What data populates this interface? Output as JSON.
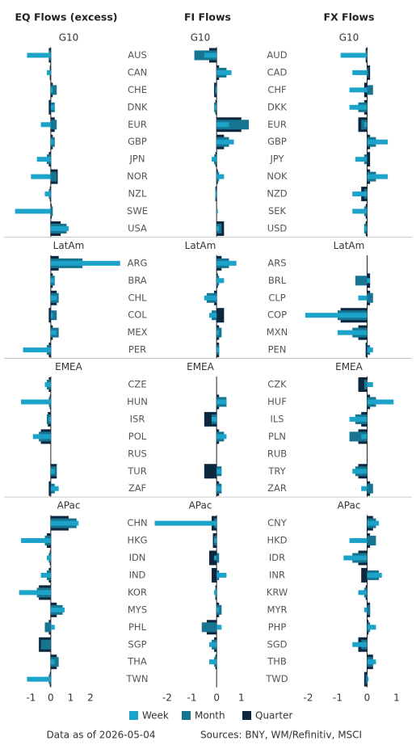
{
  "chart_data": [
    {
      "type": "bar",
      "orientation": "horizontal",
      "title": "EQ Flows (excess)",
      "groups": [
        {
          "name": "G10",
          "categories": [
            "AUS",
            "CAN",
            "CHE",
            "DNK",
            "EUR",
            "GBP",
            "JPN",
            "NOR",
            "NZL",
            "SWE",
            "USA"
          ]
        },
        {
          "name": "LatAm",
          "categories": [
            "ARG",
            "BRA",
            "CHL",
            "COL",
            "MEX",
            "PER"
          ]
        },
        {
          "name": "EMEA",
          "categories": [
            "CZE",
            "HUN",
            "ISR",
            "POL",
            "RUS",
            "TUR",
            "ZAF"
          ]
        },
        {
          "name": "APac",
          "categories": [
            "CHN",
            "HKG",
            "IDN",
            "IND",
            "KOR",
            "MYS",
            "PHL",
            "SGP",
            "THA",
            "TWN"
          ]
        }
      ],
      "series": [
        {
          "values": [
            -1.2,
            -0.2,
            0.1,
            0.2,
            -0.5,
            0.15,
            -0.7,
            -1.0,
            -0.3,
            -1.8,
            0.9,
            3.5,
            0.2,
            0.3,
            0.1,
            0.3,
            -1.4,
            -0.3,
            -1.5,
            -0.1,
            -0.9,
            0,
            0.2,
            0.4,
            1.4,
            -1.5,
            -0.2,
            -0.5,
            -1.6,
            0.7,
            0.2,
            0,
            0.2,
            -1.2
          ]
        },
        {
          "values": [
            -0.1,
            0,
            0.3,
            0.2,
            0.3,
            0.2,
            -0.2,
            0.3,
            -0.1,
            0.1,
            0.8,
            1.6,
            0.2,
            0.4,
            0.3,
            0.4,
            -0.2,
            -0.2,
            -0.1,
            -0.2,
            -0.6,
            0,
            0.3,
            0.2,
            1.3,
            -0.3,
            -0.1,
            -0.2,
            -0.7,
            0.6,
            -0.3,
            -0.5,
            0.4,
            -0.1
          ]
        },
        {
          "values": [
            -0.1,
            -0.05,
            0.1,
            -0.1,
            0.2,
            0.1,
            -0.1,
            0.35,
            -0.05,
            0.05,
            0.5,
            0.4,
            0.1,
            0.3,
            -0.1,
            0.1,
            -0.1,
            -0.1,
            -0.05,
            -0.15,
            -0.5,
            0,
            0.3,
            -0.1,
            0.9,
            -0.2,
            -0.05,
            -0.1,
            -0.6,
            0.3,
            -0.1,
            -0.6,
            0.3,
            -0.05
          ]
        }
      ],
      "xlim": [
        -1.95,
        3.55
      ],
      "xticks": [
        -1,
        0,
        1,
        2
      ]
    },
    {
      "type": "bar",
      "orientation": "horizontal",
      "title": "FI Flows",
      "groups": [
        {
          "name": "G10",
          "categories": [
            "AUD",
            "CAD",
            "CHF",
            "DKK",
            "EUR",
            "GBP",
            "JPY",
            "NOK",
            "NZD",
            "SEK",
            "USD"
          ]
        },
        {
          "name": "LatAm",
          "categories": [
            "ARS",
            "BRL",
            "CLP",
            "COP",
            "MXN",
            "PEN"
          ]
        },
        {
          "name": "EMEA",
          "categories": [
            "CZK",
            "HUF",
            "ILS",
            "PLN",
            "RUB",
            "TRY",
            "ZAR"
          ]
        },
        {
          "name": "APac",
          "categories": [
            "CNY",
            "HKD",
            "IDR",
            "INR",
            "KRW",
            "MYR",
            "PHP",
            "SGD",
            "THB",
            "TWD"
          ]
        }
      ],
      "series": [
        {
          "values": [
            -0.5,
            0.6,
            -0.05,
            -0.1,
            0.5,
            0.7,
            -0.2,
            0.3,
            -0.05,
            0.05,
            0.1,
            0.8,
            0.3,
            -0.5,
            -0.3,
            0.1,
            0.1,
            0,
            0.4,
            -0.2,
            0.4,
            0,
            0.2,
            0.2,
            -2.5,
            -0.1,
            -0.1,
            0.4,
            -0.1,
            0.1,
            0.2,
            -0.3,
            -0.3,
            0
          ]
        },
        {
          "values": [
            -0.9,
            0.4,
            -0.05,
            -0.1,
            1.3,
            0.5,
            -0.1,
            0.1,
            -0.05,
            0,
            0.2,
            0.5,
            0.1,
            -0.4,
            -0.2,
            0.2,
            0.1,
            0,
            0.4,
            -0.2,
            0.3,
            0,
            0.2,
            0.2,
            -0.1,
            -0.1,
            0.1,
            0.1,
            -0.05,
            0.2,
            -0.6,
            -0.2,
            -0.1,
            0
          ]
        },
        {
          "values": [
            -0.3,
            0.1,
            -0.1,
            -0.05,
            1.0,
            0.3,
            -0.05,
            0.05,
            -0.05,
            0,
            0.3,
            0.2,
            0.05,
            -0.1,
            0.3,
            0.1,
            0.1,
            0,
            0.1,
            -0.5,
            0.1,
            0,
            -0.5,
            0.1,
            -0.2,
            -0.15,
            -0.3,
            -0.2,
            -0.05,
            0.1,
            -0.4,
            -0.1,
            -0.05,
            0
          ]
        }
      ],
      "xlim": [
        -2.55,
        1.3
      ],
      "xticks": [
        -2,
        -1,
        0,
        1
      ]
    },
    {
      "type": "bar",
      "orientation": "horizontal",
      "title": "FX Flows",
      "groups": [
        {
          "name": "G10"
        },
        {
          "name": "LatAm"
        },
        {
          "name": "EMEA"
        },
        {
          "name": "APac"
        }
      ],
      "series": [
        {
          "values": [
            -0.9,
            -0.5,
            -0.6,
            -0.6,
            -0.1,
            0.7,
            -0.4,
            0.7,
            -0.5,
            -0.5,
            -0.1,
            0,
            0.1,
            -0.3,
            -2.1,
            -1.0,
            0.2,
            0.2,
            0.9,
            -0.6,
            -0.2,
            0,
            -0.5,
            -0.2,
            0.4,
            -0.6,
            -0.8,
            0.5,
            -0.3,
            -0.1,
            0.3,
            -0.5,
            0.3,
            0.05
          ]
        },
        {
          "values": [
            -0.05,
            0.05,
            0.2,
            -0.3,
            -0.2,
            0.3,
            -0.1,
            0.3,
            -0.1,
            -0.1,
            -0.1,
            0,
            -0.4,
            0.2,
            -1.0,
            -0.5,
            0.1,
            -0.1,
            0.3,
            -0.4,
            -0.6,
            0,
            -0.4,
            0.2,
            0.3,
            0.3,
            -0.5,
            0.4,
            -0.1,
            0.1,
            0.1,
            -0.2,
            0.2,
            -0.05
          ]
        },
        {
          "values": [
            -0.05,
            0.1,
            -0.1,
            -0.1,
            -0.3,
            0.1,
            0.1,
            0.1,
            -0.2,
            -0.05,
            -0.05,
            0,
            0.1,
            0.1,
            -0.9,
            -0.3,
            -0.05,
            -0.3,
            0.1,
            -0.2,
            -0.3,
            0,
            -0.3,
            0.1,
            0.2,
            0.1,
            -0.3,
            -0.2,
            -0.05,
            0.1,
            0.05,
            -0.3,
            0.2,
            -0.1
          ]
        }
      ],
      "xlim": [
        -2.15,
        1.0
      ],
      "xticks": [
        -2,
        -1,
        0,
        1
      ]
    }
  ],
  "legend": [
    {
      "name": "Week",
      "color": "#1ba3c9"
    },
    {
      "name": "Month",
      "color": "#177592"
    },
    {
      "name": "Quarter",
      "color": "#0d2740"
    }
  ],
  "footer": {
    "date": "Data as of 2026-05-04",
    "sources": "Sources:  BNY, WM/Refinitiv, MSCI"
  }
}
